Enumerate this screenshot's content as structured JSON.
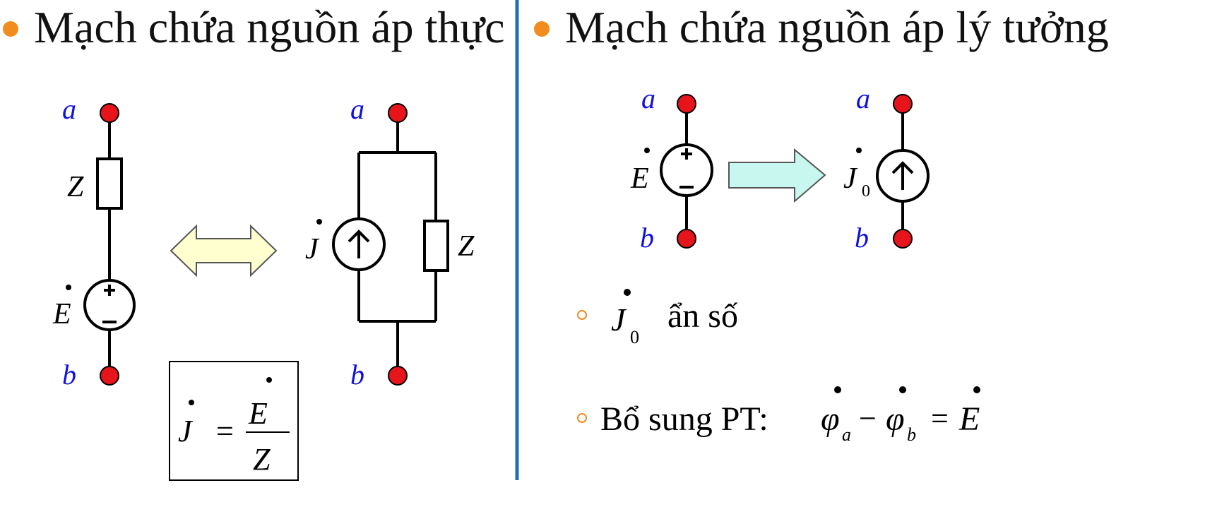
{
  "left": {
    "heading": "Mạch chứa nguồn áp thực",
    "node_a": "a",
    "node_b": "b",
    "impedance": "Z",
    "emf": "E",
    "current_source": "J",
    "formula": {
      "lhs": "J",
      "eq": "=",
      "num": "E",
      "den": "Z"
    }
  },
  "right": {
    "heading": "Mạch chứa nguồn áp lý tưởng",
    "node_a": "a",
    "node_b": "b",
    "emf": "E",
    "current_source": "J",
    "current_sub": "0",
    "item1": {
      "symbol": "J",
      "sub": "0",
      "text": "ẩn số"
    },
    "item2": {
      "text": "Bổ sung PT:",
      "phi": "φ",
      "sub_a": "a",
      "minus": "−",
      "sub_b": "b",
      "eq": "=",
      "rhs": "E"
    }
  },
  "colors": {
    "bullet": "#f28c1e",
    "divider": "#1f6fb8",
    "node": "#e8141b",
    "node_label": "#1010e0",
    "double_arrow_fill": "#ffffd0",
    "right_arrow_fill": "#c8f7f0"
  }
}
